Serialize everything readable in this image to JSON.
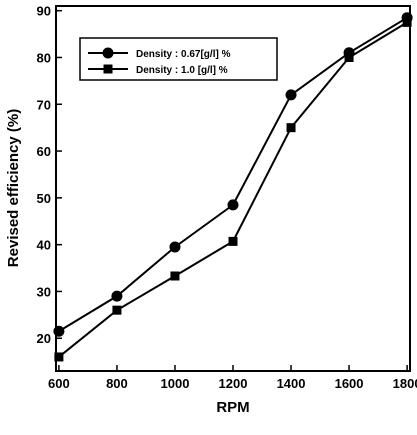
{
  "chart_data": {
    "type": "line",
    "xlabel": "RPM",
    "ylabel": "Revised efficiency (%)",
    "xlim": [
      590,
      1810
    ],
    "ylim": [
      13,
      91
    ],
    "x_ticks": [
      600,
      800,
      1000,
      1200,
      1400,
      1600,
      1800
    ],
    "y_ticks": [
      20,
      30,
      40,
      50,
      60,
      70,
      80,
      90
    ],
    "grid": false,
    "legend_position": "top-left",
    "x": [
      600,
      800,
      1000,
      1200,
      1400,
      1600,
      1800
    ],
    "series": [
      {
        "name": "Density : 0.67[g/l] %",
        "marker": "circle",
        "values": [
          21.5,
          29,
          39.5,
          48.5,
          72,
          81,
          88.5
        ]
      },
      {
        "name": "Density : 1.0 [g/l] %",
        "marker": "square",
        "values": [
          16,
          26,
          33.3,
          40.7,
          65,
          80,
          87.5
        ]
      }
    ],
    "colors": {
      "line": "#000000",
      "background": "#ffffff"
    }
  }
}
